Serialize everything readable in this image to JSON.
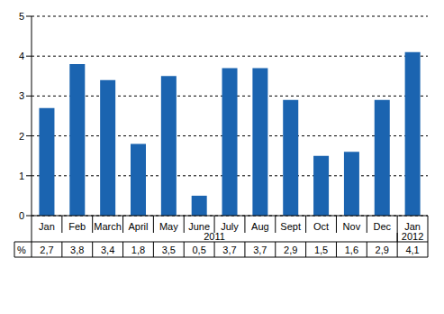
{
  "chart_data": {
    "type": "bar",
    "categories": [
      "Jan",
      "Feb",
      "March",
      "April",
      "May",
      "June",
      "July",
      "Aug",
      "Sept",
      "Oct",
      "Nov",
      "Dec",
      "Jan"
    ],
    "values": [
      2.7,
      3.8,
      3.4,
      1.8,
      3.5,
      0.5,
      3.7,
      3.7,
      2.9,
      1.5,
      1.6,
      2.9,
      4.1
    ],
    "value_labels": [
      "2,7",
      "3,8",
      "3,4",
      "1,8",
      "3,5",
      "0,5",
      "3,7",
      "3,7",
      "2,9",
      "1,5",
      "1,6",
      "2,9",
      "4,1"
    ],
    "row_label": "%",
    "x_groups": [
      {
        "label": "2011",
        "count": 12
      },
      {
        "label": "2012",
        "count": 1
      }
    ],
    "color": "#1b64b0",
    "ylim": [
      0,
      5
    ],
    "yticks": [
      0,
      1,
      2,
      3,
      4,
      5
    ],
    "grid": true
  }
}
